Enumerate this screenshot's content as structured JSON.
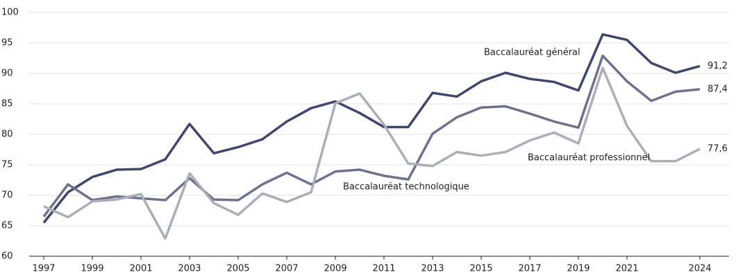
{
  "chart_data": {
    "type": "line",
    "x": [
      1997,
      1998,
      1999,
      2000,
      2001,
      2002,
      2003,
      2004,
      2005,
      2006,
      2007,
      2008,
      2009,
      2010,
      2011,
      2012,
      2013,
      2014,
      2015,
      2016,
      2017,
      2018,
      2019,
      2020,
      2021,
      2022,
      2023,
      2024
    ],
    "series": [
      {
        "name": "Baccalauréat général",
        "color": "#3e4571",
        "values": [
          65.5,
          70.5,
          73.0,
          74.2,
          74.3,
          75.9,
          81.7,
          76.9,
          77.9,
          79.2,
          82.1,
          84.3,
          85.4,
          83.5,
          81.2,
          81.2,
          86.8,
          86.2,
          88.7,
          90.1,
          89.1,
          88.6,
          87.2,
          96.4,
          95.5,
          91.7,
          90.1,
          91.2
        ],
        "value_labels": [
          null,
          null,
          null,
          null,
          null,
          null,
          null,
          null,
          null,
          null,
          null,
          null,
          null,
          null,
          null,
          null,
          null,
          null,
          null,
          null,
          null,
          null,
          null,
          null,
          null,
          null,
          null,
          "91,2"
        ]
      },
      {
        "name": "Baccalauréat technologique",
        "color": "#6d7190",
        "values": [
          66.5,
          71.8,
          69.2,
          69.8,
          69.5,
          69.2,
          72.8,
          69.3,
          69.2,
          71.8,
          73.7,
          71.8,
          73.9,
          74.2,
          73.2,
          72.6,
          80.1,
          82.8,
          84.4,
          84.6,
          83.4,
          82.1,
          81.1,
          92.9,
          88.7,
          85.5,
          87.0,
          87.4
        ],
        "value_labels": [
          null,
          null,
          null,
          null,
          null,
          null,
          null,
          null,
          null,
          null,
          null,
          null,
          null,
          null,
          null,
          null,
          null,
          null,
          null,
          null,
          null,
          null,
          null,
          null,
          null,
          null,
          null,
          "87,4"
        ]
      },
      {
        "name": "Baccalauréat professionnel",
        "color": "#abadb9",
        "values": [
          68.2,
          66.4,
          69.0,
          69.3,
          70.2,
          62.9,
          73.6,
          68.7,
          66.8,
          70.3,
          68.9,
          70.5,
          85.1,
          86.7,
          81.6,
          75.2,
          74.8,
          77.1,
          76.5,
          77.1,
          79.0,
          80.3,
          78.5,
          90.9,
          81.4,
          75.6,
          75.6,
          77.6
        ],
        "value_labels": [
          null,
          null,
          null,
          null,
          null,
          null,
          null,
          null,
          null,
          null,
          null,
          null,
          null,
          null,
          null,
          null,
          null,
          null,
          null,
          null,
          null,
          null,
          null,
          null,
          null,
          null,
          null,
          "77,6"
        ]
      }
    ],
    "xlim": [
      1996.4,
      2025.2
    ],
    "xticks": [
      1997,
      1999,
      2001,
      2003,
      2005,
      2007,
      2009,
      2011,
      2013,
      2015,
      2017,
      2019,
      2021,
      2024
    ],
    "ylim": [
      60,
      100
    ],
    "yticks": [
      60,
      65,
      70,
      75,
      80,
      85,
      90,
      95,
      100
    ],
    "grid": true
  }
}
